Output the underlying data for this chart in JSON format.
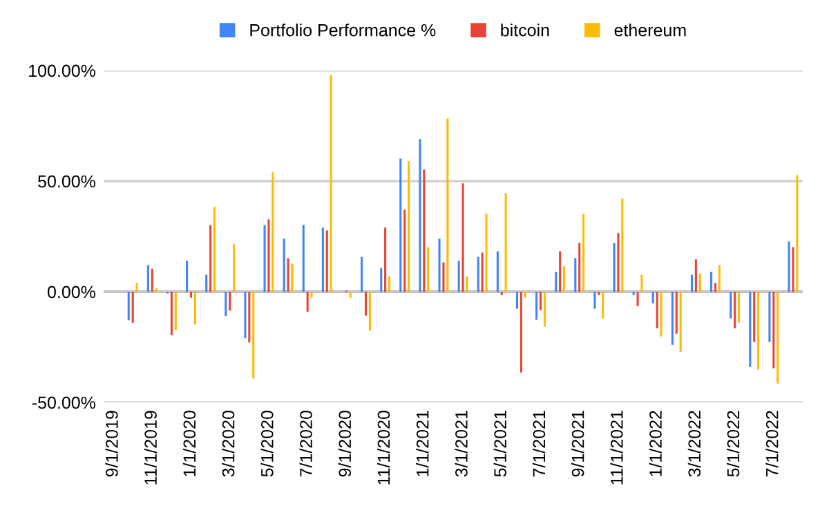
{
  "chart_data": {
    "type": "bar",
    "categories": [
      "9/1/2019",
      null,
      "11/1/2019",
      null,
      "1/1/2020",
      null,
      "3/1/2020",
      null,
      "5/1/2020",
      null,
      "7/1/2020",
      null,
      "9/1/2020",
      null,
      "11/1/2020",
      null,
      "1/1/2021",
      null,
      "3/1/2021",
      null,
      "5/1/2021",
      null,
      "7/1/2021",
      null,
      "9/1/2021",
      null,
      "11/1/2021",
      null,
      "1/1/2022",
      null,
      "3/1/2022",
      null,
      "5/1/2022",
      null,
      "7/1/2022",
      null
    ],
    "series": [
      {
        "name": "Portfolio Performance %",
        "color": "#4285f4",
        "values": [
          0,
          -12.9,
          12.1,
          -0.8,
          14.0,
          7.7,
          -11.0,
          -21.0,
          30.2,
          24.0,
          30.2,
          29.0,
          0,
          15.8,
          10.8,
          60.2,
          69.0,
          24.0,
          14.0,
          15.8,
          18.3,
          -7.7,
          -12.7,
          9.0,
          15.2,
          -7.7,
          22.1,
          -1.5,
          -5.2,
          -24.0,
          7.7,
          9.0,
          -12.1,
          -34.0,
          -22.7,
          22.7
        ]
      },
      {
        "name": "bitcoin",
        "color": "#ea4335",
        "values": [
          0,
          -14.0,
          10.4,
          -19.6,
          -2.7,
          30.2,
          -8.5,
          -22.9,
          32.7,
          15.2,
          -9.0,
          27.7,
          0.6,
          -10.8,
          29.0,
          37.1,
          55.2,
          13.3,
          49.0,
          17.7,
          -1.5,
          -36.5,
          -8.3,
          18.3,
          22.1,
          -1.5,
          26.5,
          -6.5,
          -16.5,
          -19.0,
          14.6,
          4.0,
          -16.5,
          -22.7,
          -34.6,
          20.2
        ]
      },
      {
        "name": "ethereum",
        "color": "#fbbc04",
        "values": [
          0,
          4.0,
          1.5,
          -17.3,
          -14.8,
          38.3,
          21.5,
          -39.2,
          54.0,
          12.7,
          -2.7,
          97.9,
          -2.7,
          -17.7,
          6.9,
          59.0,
          20.2,
          78.3,
          6.9,
          35.2,
          44.6,
          -2.7,
          -15.8,
          11.5,
          35.2,
          -12.1,
          42.1,
          7.7,
          -20.2,
          -27.1,
          8.3,
          12.1,
          -14.0,
          -35.2,
          -41.5,
          52.7
        ]
      }
    ],
    "ylim": [
      -50,
      100
    ],
    "yticks": [
      {
        "value": -50,
        "label": "-50.00%"
      },
      {
        "value": 0,
        "label": "0.00%"
      },
      {
        "value": 50,
        "label": "50.00%"
      },
      {
        "value": 100,
        "label": "100.00%"
      }
    ],
    "grid": "y",
    "legend": "top"
  }
}
